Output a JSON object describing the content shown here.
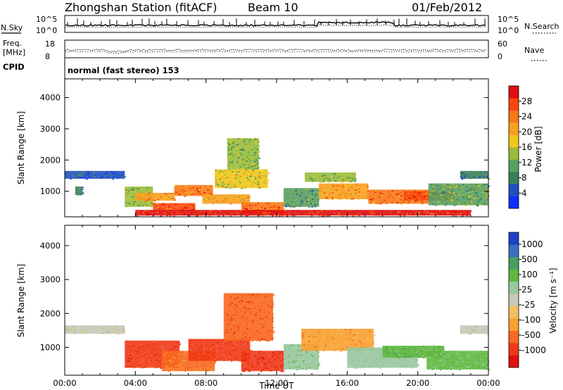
{
  "header": {
    "station": "Zhongshan Station (fitACF)",
    "beam": "Beam 10",
    "date": "01/Feb/2012"
  },
  "top_panels": {
    "nsky_label": "N.Sky",
    "nsky_top": "10^5",
    "nsky_bottom": "10^0",
    "nsearch_label": "N.Search",
    "nsearch_top": "10^5",
    "nsearch_bottom": "10^0",
    "freq_label": "Freq.",
    "freq_unit": "[MHz]",
    "freq_top": "18",
    "freq_bottom": "8",
    "nave_label": "Nave",
    "nave_top": "60",
    "nave_bottom": "0",
    "cpid_label": "CPID",
    "cpid_text": "normal (fast stereo) 153"
  },
  "colors": {
    "power": [
      "#1030ff",
      "#2050c0",
      "#3c8058",
      "#5aa060",
      "#98bc3c",
      "#f0c818",
      "#f8a020",
      "#f87818",
      "#f84810",
      "#e01010"
    ],
    "velocity": [
      "#e01010",
      "#f03818",
      "#f86820",
      "#f8a030",
      "#f0c060",
      "#c8c8b8",
      "#98c8a0",
      "#60b840",
      "#48a060",
      "#3a70c0",
      "#2040c8"
    ]
  },
  "chart_data": [
    {
      "type": "heatmap",
      "name": "power",
      "xlabel": "",
      "ylabel": "Slant Range [km]",
      "x_ticks": [
        "00:00",
        "04:00",
        "08:00",
        "12:00",
        "16:00",
        "20:00",
        "00:00"
      ],
      "xlim": [
        0,
        24
      ],
      "y_ticks": [
        1000,
        2000,
        3000,
        4000
      ],
      "ylim": [
        180,
        4600
      ],
      "colorbar": {
        "label": "Power [dB]",
        "ticks": [
          4,
          8,
          12,
          16,
          20,
          24,
          28
        ],
        "range": [
          0,
          32
        ]
      },
      "cells": [
        {
          "t0": 0.0,
          "t1": 3.4,
          "r0": 1400,
          "r1": 1650,
          "v": 5
        },
        {
          "t0": 0.6,
          "t1": 1.0,
          "r0": 880,
          "r1": 1150,
          "v": 7
        },
        {
          "t0": 3.4,
          "t1": 5.0,
          "r0": 500,
          "r1": 1150,
          "v": 14
        },
        {
          "t0": 4.0,
          "t1": 6.2,
          "r0": 700,
          "r1": 950,
          "v": 22
        },
        {
          "t0": 5.0,
          "t1": 7.4,
          "r0": 380,
          "r1": 620,
          "v": 26
        },
        {
          "t0": 6.2,
          "t1": 8.4,
          "r0": 850,
          "r1": 1200,
          "v": 24
        },
        {
          "t0": 7.8,
          "t1": 10.5,
          "r0": 600,
          "r1": 900,
          "v": 20
        },
        {
          "t0": 8.5,
          "t1": 11.5,
          "r0": 1100,
          "r1": 1700,
          "v": 16
        },
        {
          "t0": 9.2,
          "t1": 11.0,
          "r0": 1700,
          "r1": 2700,
          "v": 13
        },
        {
          "t0": 10.0,
          "t1": 12.4,
          "r0": 300,
          "r1": 650,
          "v": 25
        },
        {
          "t0": 12.4,
          "t1": 14.4,
          "r0": 500,
          "r1": 1100,
          "v": 10
        },
        {
          "t0": 13.6,
          "t1": 16.5,
          "r0": 1300,
          "r1": 1600,
          "v": 14
        },
        {
          "t0": 14.4,
          "t1": 17.2,
          "r0": 750,
          "r1": 1250,
          "v": 22
        },
        {
          "t0": 17.2,
          "t1": 20.6,
          "r0": 600,
          "r1": 1050,
          "v": 24
        },
        {
          "t0": 19.2,
          "t1": 22.0,
          "r0": 700,
          "r1": 1000,
          "v": 26
        },
        {
          "t0": 20.6,
          "t1": 24.0,
          "r0": 550,
          "r1": 1250,
          "v": 12
        },
        {
          "t0": 22.4,
          "t1": 24.0,
          "r0": 1400,
          "r1": 1650,
          "v": 7
        },
        {
          "t0": 4.0,
          "t1": 23.0,
          "r0": 220,
          "r1": 400,
          "v": 29
        }
      ]
    },
    {
      "type": "heatmap",
      "name": "velocity",
      "xlabel": "Time UT",
      "ylabel": "Slant Range [km]",
      "x_ticks": [
        "00:00",
        "04:00",
        "08:00",
        "12:00",
        "16:00",
        "20:00",
        "00:00"
      ],
      "xlim": [
        0,
        24
      ],
      "y_ticks": [
        1000,
        2000,
        3000,
        4000
      ],
      "ylim": [
        180,
        4600
      ],
      "colorbar": {
        "label": "Velocity [m s⁻¹]",
        "ticks": [
          "1000",
          "500",
          "100",
          "25",
          "-25",
          "-100",
          "-500",
          "-1000"
        ]
      },
      "cells": [
        {
          "t0": 0.0,
          "t1": 3.4,
          "r0": 1400,
          "r1": 1650,
          "v": 0
        },
        {
          "t0": 3.4,
          "t1": 6.5,
          "r0": 400,
          "r1": 1200,
          "v": -700
        },
        {
          "t0": 5.5,
          "t1": 8.5,
          "r0": 300,
          "r1": 900,
          "v": -200
        },
        {
          "t0": 7.0,
          "t1": 10.5,
          "r0": 600,
          "r1": 1250,
          "v": -600
        },
        {
          "t0": 9.0,
          "t1": 11.8,
          "r0": 1200,
          "r1": 2600,
          "v": -400
        },
        {
          "t0": 10.0,
          "t1": 12.4,
          "r0": 300,
          "r1": 900,
          "v": -800
        },
        {
          "t0": 12.4,
          "t1": 14.4,
          "r0": 350,
          "r1": 1100,
          "v": 80
        },
        {
          "t0": 13.4,
          "t1": 17.5,
          "r0": 900,
          "r1": 1550,
          "v": -150
        },
        {
          "t0": 16.0,
          "t1": 20.0,
          "r0": 400,
          "r1": 1000,
          "v": 60
        },
        {
          "t0": 18.0,
          "t1": 21.5,
          "r0": 700,
          "r1": 1050,
          "v": 150
        },
        {
          "t0": 20.5,
          "t1": 24.0,
          "r0": 350,
          "r1": 900,
          "v": 120
        },
        {
          "t0": 22.4,
          "t1": 24.0,
          "r0": 1400,
          "r1": 1650,
          "v": 0
        }
      ]
    }
  ]
}
